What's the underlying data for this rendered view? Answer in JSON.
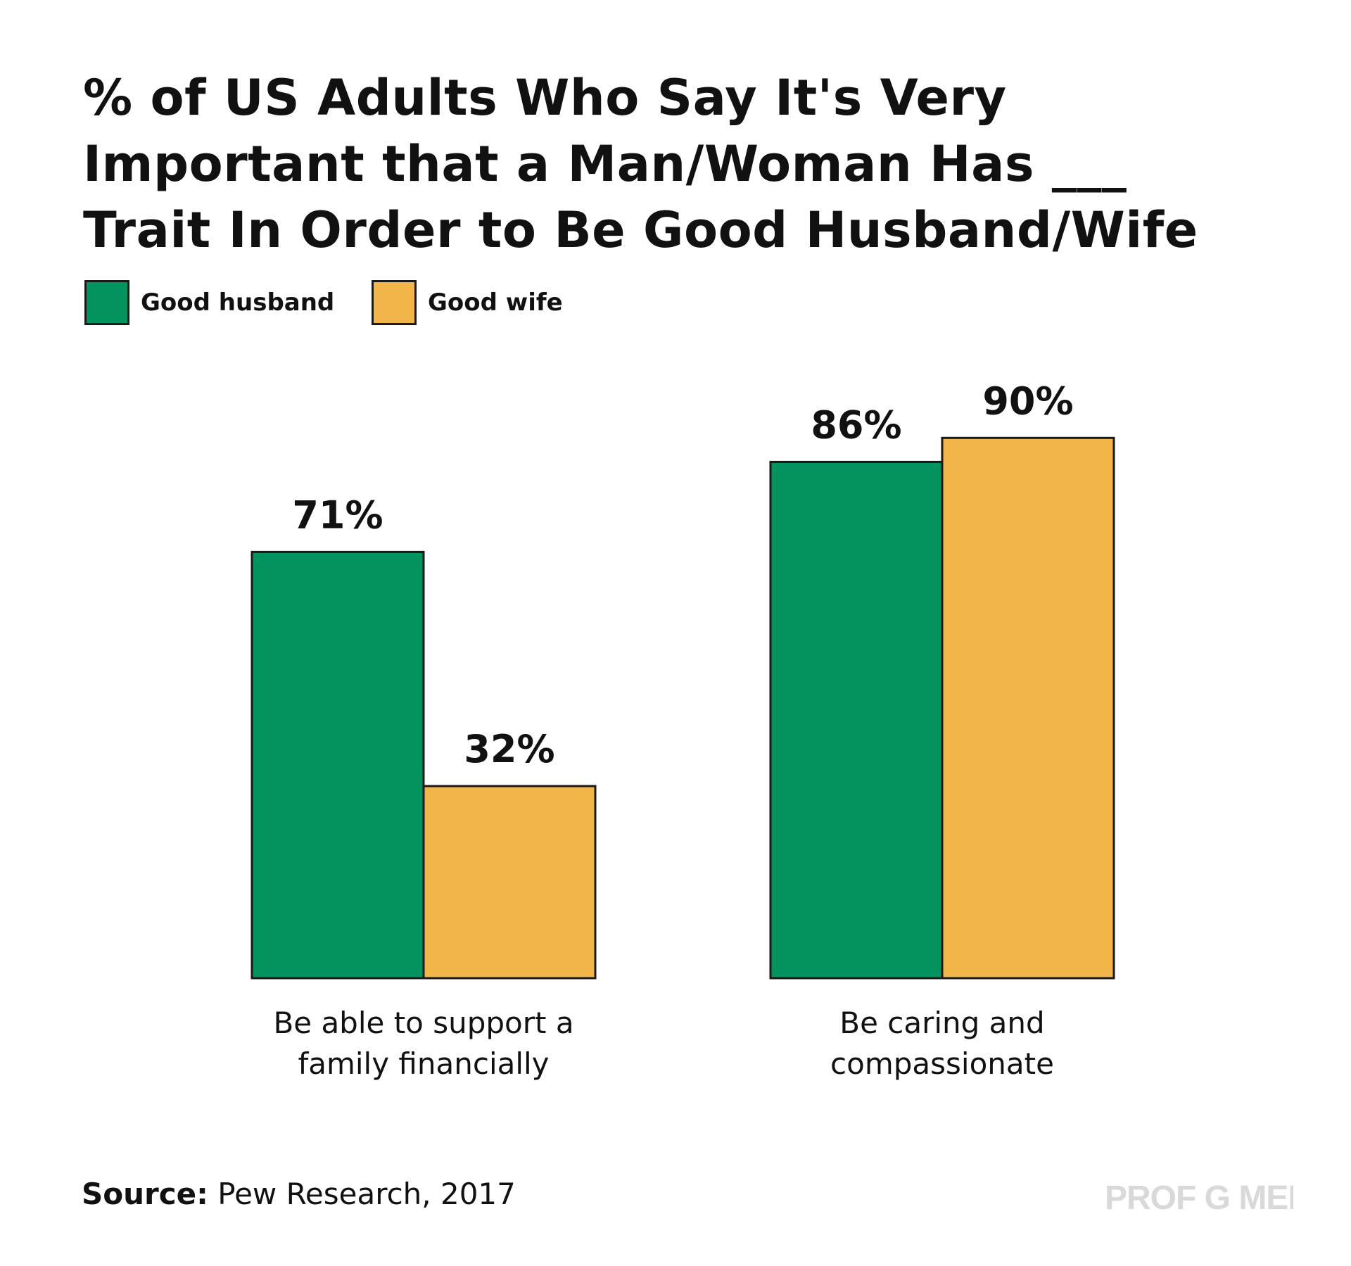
{
  "title": "% of US Adults Who Say It's Very Important that a Man/Woman Has ___ Trait In Order to Be Good Husband/Wife",
  "title_lines": [
    "% of US Adults Who Say It's Very",
    "Important that a Man/Woman Has ___",
    "Trait In Order to Be Good Husband/Wife"
  ],
  "legend": {
    "items": [
      {
        "label": "Good husband",
        "color": "#02935e"
      },
      {
        "label": "Good wife",
        "color": "#f2b54a"
      }
    ]
  },
  "chart_data": {
    "type": "bar",
    "title": "% of US Adults Who Say It's Very Important that a Man/Woman Has ___ Trait In Order to Be Good Husband/Wife",
    "categories": [
      "Be able to support a family financially",
      "Be caring and compassionate"
    ],
    "category_label_lines": [
      [
        "Be able to support a",
        "family financially"
      ],
      [
        "Be caring and",
        "compassionate"
      ]
    ],
    "series": [
      {
        "name": "Good husband",
        "values": [
          71,
          86
        ],
        "labels": [
          "71%",
          "86%"
        ],
        "color": "#02935e"
      },
      {
        "name": "Good wife",
        "values": [
          32,
          90
        ],
        "labels": [
          "32%",
          "90%"
        ],
        "color": "#f2b54a"
      }
    ],
    "ylim": [
      0,
      100
    ],
    "unit": "%",
    "xlabel": "",
    "ylabel": "",
    "grid": false,
    "legend_position": "top-left"
  },
  "source": {
    "label": "Source:",
    "text": "Pew Research, 2017"
  },
  "brand": "PROF G MEDIA"
}
